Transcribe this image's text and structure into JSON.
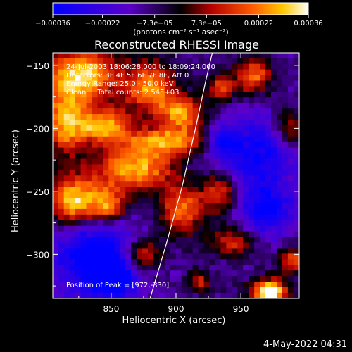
{
  "chart_data": {
    "type": "heatmap",
    "title": "Reconstructed RHESSI Image",
    "xlabel": "Heliocentric X (arcsec)",
    "ylabel": "Heliocentric Y (arcsec)",
    "xlim": [
      805,
      995
    ],
    "ylim": [
      -335,
      -140
    ],
    "x_ticks": [
      {
        "v": 850,
        "t": "850"
      },
      {
        "v": 900,
        "t": "900"
      },
      {
        "v": 950,
        "t": "950"
      }
    ],
    "y_ticks": [
      {
        "v": -150,
        "t": "−150"
      },
      {
        "v": -200,
        "t": "−200"
      },
      {
        "v": -250,
        "t": "−250"
      },
      {
        "v": -300,
        "t": "−300"
      }
    ],
    "colorbar": {
      "range": [
        -0.00036,
        0.00036
      ],
      "ticks": [
        {
          "v": -0.00036,
          "t": "−0.00036"
        },
        {
          "v": -0.00022,
          "t": "−0.00022"
        },
        {
          "v": -7.3e-05,
          "t": "−7.3e−05"
        },
        {
          "v": 7.3e-05,
          "t": "7.3e−05"
        },
        {
          "v": 0.00022,
          "t": "0.00022"
        },
        {
          "v": 0.00036,
          "t": "0.00036"
        }
      ],
      "unit_label": "(photons cm⁻² s⁻¹ asec⁻²)"
    },
    "annotations": [
      "24-Jul-2003 18:06:28.000 to 18:09:24.000",
      "Detectors: 3F 4F 5F 6F 7F 8F, Att 0",
      "Energy Range: 25.0 - 50.0 keV",
      "Clean     Total counts: 2.54E+03"
    ],
    "peak_label": "Position of Peak = [972,-330]",
    "peak": [
      972,
      -330
    ],
    "limb_curve": [
      [
        880,
        -335
      ],
      [
        893,
        -290
      ],
      [
        905,
        -245
      ],
      [
        915,
        -200
      ],
      [
        923,
        -162
      ],
      [
        928,
        -140
      ]
    ],
    "hot_regions": [
      {
        "x": 828,
        "y": -158,
        "sx": 20,
        "sy": 15,
        "a": 0.95
      },
      {
        "x": 815,
        "y": -195,
        "sx": 12,
        "sy": 18,
        "a": 0.8
      },
      {
        "x": 845,
        "y": -198,
        "sx": 14,
        "sy": 9,
        "a": 0.8
      },
      {
        "x": 880,
        "y": -168,
        "sx": 14,
        "sy": 15,
        "a": 0.75
      },
      {
        "x": 905,
        "y": -188,
        "sx": 12,
        "sy": 10,
        "a": 0.75
      },
      {
        "x": 895,
        "y": -210,
        "sx": 25,
        "sy": 8,
        "a": 0.7
      },
      {
        "x": 868,
        "y": -232,
        "sx": 22,
        "sy": 13,
        "a": 0.85
      },
      {
        "x": 822,
        "y": -258,
        "sx": 14,
        "sy": 14,
        "a": 1.0
      },
      {
        "x": 848,
        "y": -262,
        "sx": 10,
        "sy": 10,
        "a": 0.75
      },
      {
        "x": 905,
        "y": -265,
        "sx": 12,
        "sy": 14,
        "a": 0.7
      },
      {
        "x": 875,
        "y": -300,
        "sx": 10,
        "sy": 10,
        "a": 0.6
      },
      {
        "x": 960,
        "y": -158,
        "sx": 10,
        "sy": 10,
        "a": 0.7
      },
      {
        "x": 935,
        "y": -168,
        "sx": 8,
        "sy": 8,
        "a": 0.55
      },
      {
        "x": 988,
        "y": -200,
        "sx": 8,
        "sy": 10,
        "a": 0.55
      },
      {
        "x": 935,
        "y": -250,
        "sx": 10,
        "sy": 12,
        "a": 0.6
      },
      {
        "x": 945,
        "y": -290,
        "sx": 12,
        "sy": 8,
        "a": 0.55
      },
      {
        "x": 990,
        "y": -305,
        "sx": 8,
        "sy": 8,
        "a": 0.6
      },
      {
        "x": 972,
        "y": -330,
        "sx": 10,
        "sy": 7,
        "a": 1.15
      },
      {
        "x": 918,
        "y": -322,
        "sx": 6,
        "sy": 6,
        "a": 0.5
      }
    ],
    "cold_regions": [
      {
        "x": 838,
        "y": -302,
        "sx": 22,
        "sy": 25,
        "a": 0.45
      },
      {
        "x": 960,
        "y": -220,
        "sx": 22,
        "sy": 20,
        "a": 0.35
      },
      {
        "x": 970,
        "y": -265,
        "sx": 15,
        "sy": 15,
        "a": 0.35
      },
      {
        "x": 935,
        "y": -210,
        "sx": 8,
        "sy": 8,
        "a": 0.3
      },
      {
        "x": 855,
        "y": -320,
        "sx": 10,
        "sy": 8,
        "a": 0.35
      }
    ],
    "grid": false
  },
  "footer": {
    "timestamp": "4-May-2022 04:31"
  }
}
